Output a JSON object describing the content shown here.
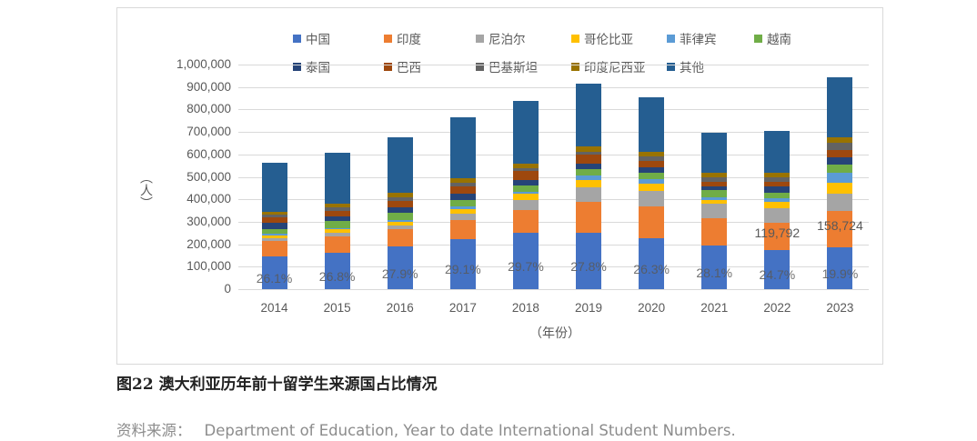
{
  "figure": {
    "caption": "图22 澳大利亚历年前十留学生来源国占比情况",
    "source_label": "资料来源：",
    "source_text": "Department of Education, Year to date International Student Numbers."
  },
  "chart_data": {
    "type": "bar",
    "stacked": true,
    "title": "",
    "xlabel": "（年份）",
    "ylabel": "（人）",
    "ylim": [
      0,
      1000000
    ],
    "yticks": [
      "0",
      "100,000",
      "200,000",
      "300,000",
      "400,000",
      "500,000",
      "600,000",
      "700,000",
      "800,000",
      "900,000",
      "1,000,000"
    ],
    "grid": true,
    "legend_position": "top",
    "categories": [
      "2014",
      "2015",
      "2016",
      "2017",
      "2018",
      "2019",
      "2020",
      "2021",
      "2022",
      "2023"
    ],
    "series": [
      {
        "name": "中国",
        "color": "#4472C4",
        "values": [
          147000,
          163000,
          189000,
          223000,
          249000,
          253000,
          226000,
          196000,
          175000,
          188000
        ]
      },
      {
        "name": "印度",
        "color": "#ED7D31",
        "values": [
          68000,
          72000,
          78000,
          85000,
          103000,
          136000,
          142000,
          120000,
          119792,
          158724
        ]
      },
      {
        "name": "尼泊尔",
        "color": "#A5A5A5",
        "values": [
          12000,
          16000,
          16000,
          28000,
          45000,
          64000,
          69000,
          65000,
          64000,
          80000
        ]
      },
      {
        "name": "哥伦比亚",
        "color": "#FFC000",
        "values": [
          12000,
          16000,
          17000,
          20000,
          28000,
          33000,
          33000,
          16000,
          29000,
          48000
        ]
      },
      {
        "name": "菲律宾",
        "color": "#5B9BD5",
        "values": [
          8000,
          4000,
          8000,
          12000,
          8000,
          20000,
          20000,
          12000,
          16000,
          44000
        ]
      },
      {
        "name": "越南",
        "color": "#70AD47",
        "values": [
          20000,
          33000,
          32000,
          29000,
          29000,
          28000,
          28000,
          32000,
          24000,
          37000
        ]
      },
      {
        "name": "泰国",
        "color": "#264478",
        "values": [
          29000,
          20000,
          24000,
          28000,
          24000,
          25000,
          25000,
          16000,
          28000,
          32000
        ]
      },
      {
        "name": "巴西",
        "color": "#9E480E",
        "values": [
          24000,
          24000,
          29000,
          32000,
          40000,
          40000,
          28000,
          21000,
          21000,
          32000
        ]
      },
      {
        "name": "巴基斯坦",
        "color": "#636363",
        "values": [
          12000,
          16000,
          16000,
          17000,
          12000,
          12000,
          20000,
          20000,
          20000,
          33000
        ]
      },
      {
        "name": "印度尼西亚",
        "color": "#997300",
        "values": [
          12000,
          16000,
          20000,
          20000,
          21000,
          25000,
          20000,
          20000,
          20000,
          24000
        ]
      },
      {
        "name": "其他",
        "color": "#255E91",
        "values": [
          219000,
          227000,
          247000,
          271000,
          279000,
          279000,
          243000,
          178000,
          190000,
          267000
        ]
      }
    ],
    "annotations": {
      "china_share_pct": [
        "26.1%",
        "26.8%",
        "27.9%",
        "29.1%",
        "29.7%",
        "27.8%",
        "26.3%",
        "28.1%",
        "24.7%",
        "19.9%"
      ],
      "india_value_labels": {
        "2022": "119,792",
        "2023": "158,724"
      }
    }
  }
}
